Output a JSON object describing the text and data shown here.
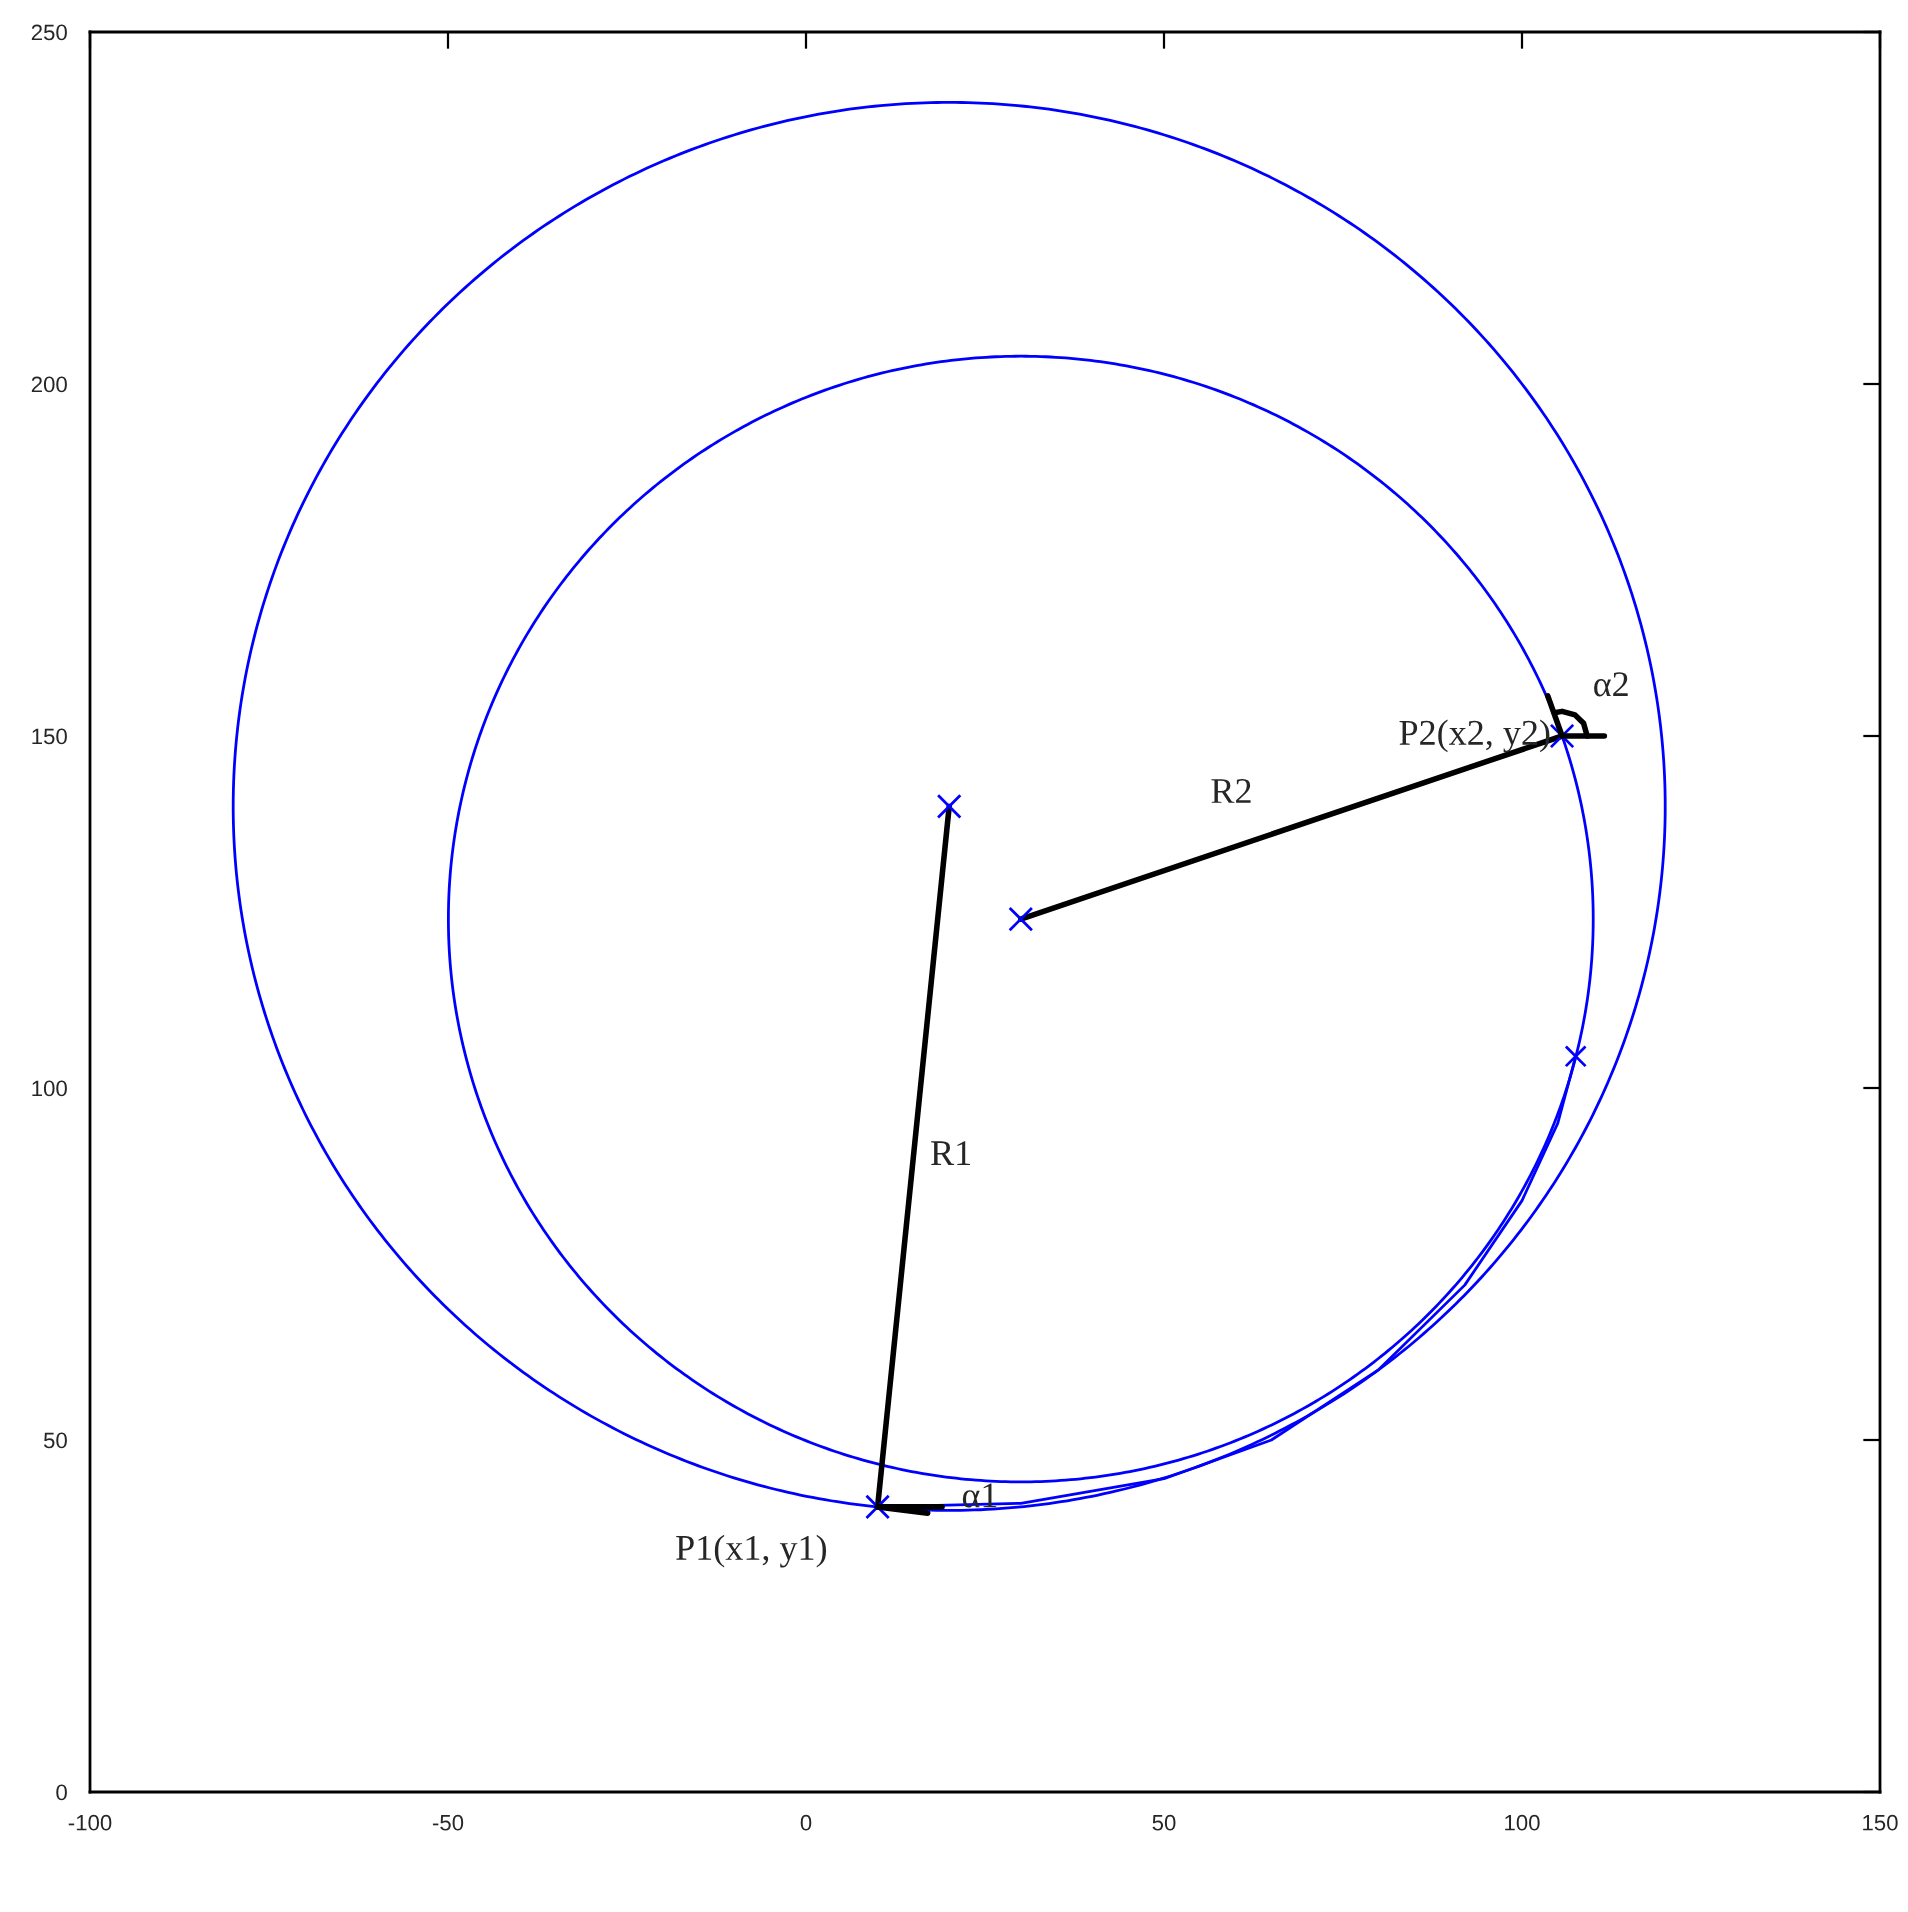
{
  "chart_data": {
    "type": "line",
    "xlim": [
      -100,
      150
    ],
    "ylim": [
      0,
      250
    ],
    "xticks": [
      -100,
      -50,
      0,
      50,
      100,
      150
    ],
    "yticks": [
      0,
      50,
      100,
      150,
      200,
      250
    ],
    "grid": false,
    "legend": false,
    "line_style": "solid",
    "marker": "none",
    "series": [
      {
        "color": "#0000ff",
        "x": [
          10,
          30,
          50,
          65,
          80,
          92,
          100,
          105,
          107.5
        ],
        "values": [
          40.5,
          41,
          44.5,
          50,
          60,
          72,
          84,
          95,
          104.5
        ]
      },
      {
        "color": "#000000",
        "marker": "cross",
        "x": [
          20,
          10
        ],
        "values": [
          140,
          40.5
        ]
      },
      {
        "color": "#000000",
        "marker": "cross",
        "x": [
          30,
          105.6
        ],
        "values": [
          124,
          150
        ]
      },
      {
        "color": "#000000",
        "x": [
          10,
          19
        ],
        "values": [
          40.5,
          40.5
        ]
      },
      {
        "color": "#000000",
        "x": [
          10,
          17
        ],
        "values": [
          40.5,
          39.6
        ]
      },
      {
        "color": "#000000",
        "x": [
          105.6,
          111.5
        ],
        "values": [
          150,
          150
        ]
      },
      {
        "color": "#000000",
        "x": [
          105.6,
          103.6
        ],
        "values": [
          150,
          155.7
        ]
      },
      {
        "color": "#000000",
        "x": [
          109.1,
          108.6,
          107.4,
          105.6,
          104.5
        ],
        "values": [
          150,
          151.8,
          153,
          153.5,
          153.3
        ]
      },
      {
        "type": "scatter",
        "marker": "cross",
        "color": "#0000ff",
        "x": [
          107.5
        ],
        "values": [
          104.5
        ]
      }
    ],
    "annotations": [
      {
        "text": "R1",
        "x": 15,
        "y": 90.3
      },
      {
        "text": "R2",
        "x": 67.8,
        "y": 137
      },
      {
        "text": "P1(x1, y1)",
        "x": 10,
        "y": 40.5
      },
      {
        "text": "α1",
        "x": 19,
        "y": 40.5
      },
      {
        "text": "P2(x2, y2)",
        "x": 105.6,
        "y": 150
      },
      {
        "text": "α2",
        "x": 109.1,
        "y": 153
      }
    ]
  }
}
